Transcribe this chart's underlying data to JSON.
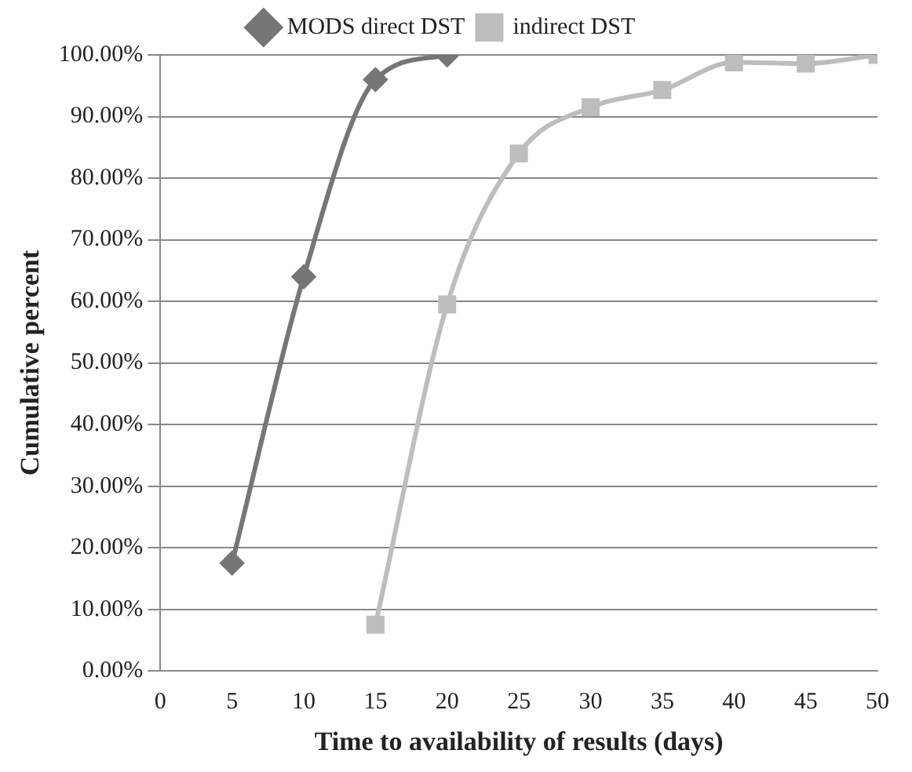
{
  "chart_data": {
    "type": "line",
    "xlabel": "Time to availability of results (days)",
    "ylabel": "Cumulative percent",
    "xlim": [
      0,
      50
    ],
    "xticks": [
      0,
      5,
      10,
      15,
      20,
      25,
      30,
      35,
      40,
      45,
      50
    ],
    "ylim": [
      0,
      100
    ],
    "yticks": [
      {
        "value": 0,
        "label": "0.00%"
      },
      {
        "value": 10,
        "label": "10.00%"
      },
      {
        "value": 20,
        "label": "20.00%"
      },
      {
        "value": 30,
        "label": "30.00%"
      },
      {
        "value": 40,
        "label": "40.00%"
      },
      {
        "value": 50,
        "label": "50.00%"
      },
      {
        "value": 60,
        "label": "60.00%"
      },
      {
        "value": 70,
        "label": "70.00%"
      },
      {
        "value": 80,
        "label": "80.00%"
      },
      {
        "value": 90,
        "label": "90.00%"
      },
      {
        "value": 100,
        "label": "100.00%"
      }
    ],
    "grid": "y",
    "legend": "top",
    "series": [
      {
        "name": "MODS direct DST",
        "color": "#767676",
        "marker": "diamond",
        "x": [
          5,
          10,
          15,
          20
        ],
        "values": [
          17.5,
          64,
          96,
          100
        ]
      },
      {
        "name": "indirect DST",
        "color": "#bdbdbd",
        "marker": "square",
        "x": [
          15,
          20,
          25,
          30,
          35,
          40,
          45,
          50
        ],
        "values": [
          7.5,
          59.5,
          84,
          91.5,
          94.3,
          98.8,
          98.6,
          100
        ]
      }
    ]
  }
}
